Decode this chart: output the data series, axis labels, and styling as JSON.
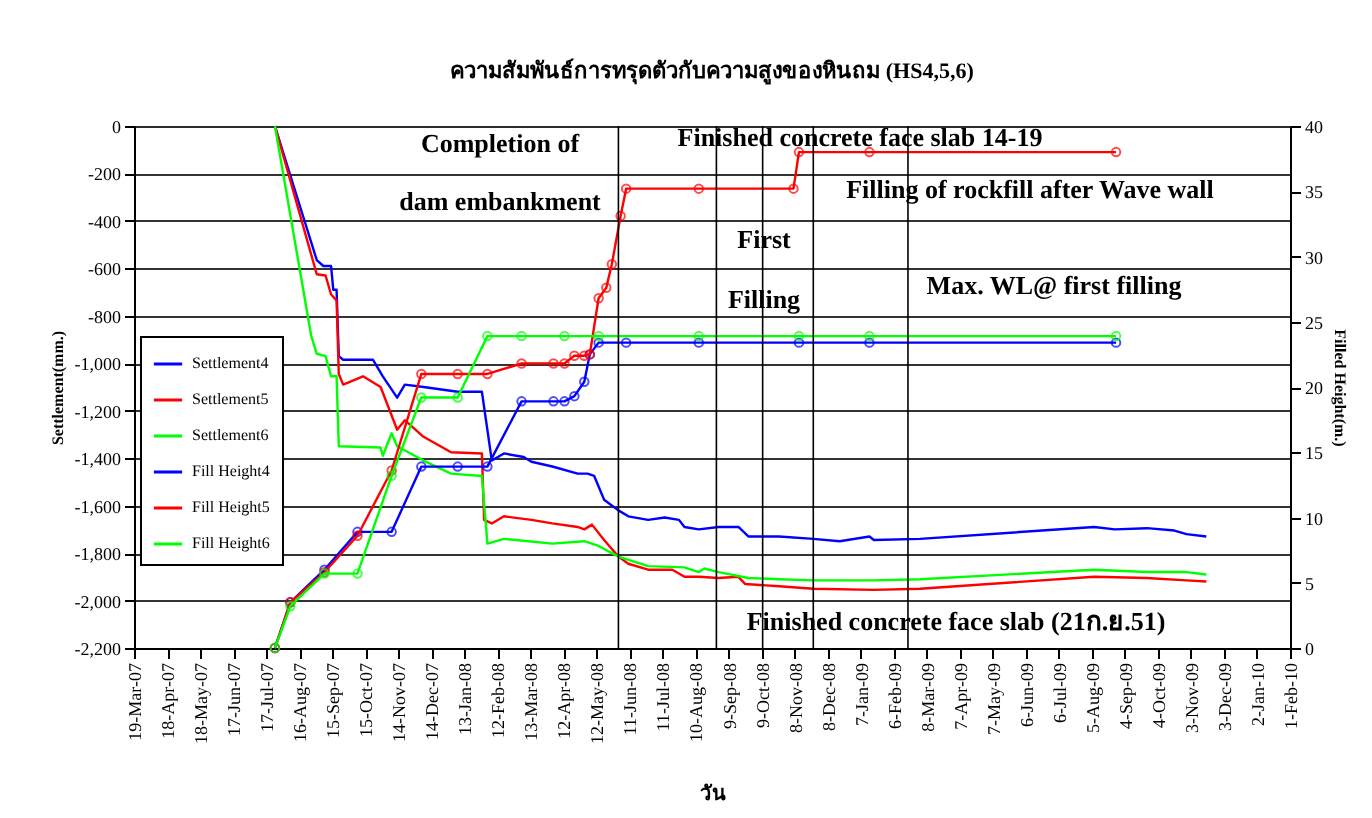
{
  "chart_data": {
    "type": "line",
    "title": "ความสัมพันธ์การทรุดตัวกับความสูงของหินถม (HS4,5,6)",
    "xlabel": "วัน",
    "ylabel": "Settlement(mm.)",
    "y2label": "Filled Height(m.)",
    "xlim": [
      "2007-03-19",
      "2010-02-01"
    ],
    "xticks": [
      {
        "value": "2007-03-19",
        "label": "19-Mar-07"
      },
      {
        "value": "2007-04-18",
        "label": "18-Apr-07"
      },
      {
        "value": "2007-05-18",
        "label": "18-May-07"
      },
      {
        "value": "2007-06-17",
        "label": "17-Jun-07"
      },
      {
        "value": "2007-07-17",
        "label": "17-Jul-07"
      },
      {
        "value": "2007-08-16",
        "label": "16-Aug-07"
      },
      {
        "value": "2007-09-15",
        "label": "15-Sep-07"
      },
      {
        "value": "2007-10-15",
        "label": "15-Oct-07"
      },
      {
        "value": "2007-11-14",
        "label": "14-Nov-07"
      },
      {
        "value": "2007-12-14",
        "label": "14-Dec-07"
      },
      {
        "value": "2008-01-13",
        "label": "13-Jan-08"
      },
      {
        "value": "2008-02-12",
        "label": "12-Feb-08"
      },
      {
        "value": "2008-03-13",
        "label": "13-Mar-08"
      },
      {
        "value": "2008-04-12",
        "label": "12-Apr-08"
      },
      {
        "value": "2008-05-12",
        "label": "12-May-08"
      },
      {
        "value": "2008-06-11",
        "label": "11-Jun-08"
      },
      {
        "value": "2008-07-11",
        "label": "11-Jul-08"
      },
      {
        "value": "2008-08-10",
        "label": "10-Aug-08"
      },
      {
        "value": "2008-09-09",
        "label": "9-Sep-08"
      },
      {
        "value": "2008-10-09",
        "label": "9-Oct-08"
      },
      {
        "value": "2008-11-08",
        "label": "8-Nov-08"
      },
      {
        "value": "2008-12-08",
        "label": "8-Dec-08"
      },
      {
        "value": "2009-01-07",
        "label": "7-Jan-09"
      },
      {
        "value": "2009-02-06",
        "label": "6-Feb-09"
      },
      {
        "value": "2009-03-08",
        "label": "8-Mar-09"
      },
      {
        "value": "2009-04-07",
        "label": "7-Apr-09"
      },
      {
        "value": "2009-05-07",
        "label": "7-May-09"
      },
      {
        "value": "2009-06-06",
        "label": "6-Jun-09"
      },
      {
        "value": "2009-07-06",
        "label": "6-Jul-09"
      },
      {
        "value": "2009-08-05",
        "label": "5-Aug-09"
      },
      {
        "value": "2009-09-04",
        "label": "4-Sep-09"
      },
      {
        "value": "2009-10-04",
        "label": "4-Oct-09"
      },
      {
        "value": "2009-11-03",
        "label": "3-Nov-09"
      },
      {
        "value": "2009-12-03",
        "label": "3-Dec-09"
      },
      {
        "value": "2010-01-02",
        "label": "2-Jan-10"
      },
      {
        "value": "2010-02-01",
        "label": "1-Feb-10"
      }
    ],
    "ylim": [
      -2200,
      0
    ],
    "yticks": [
      {
        "value": -2200,
        "label": "-2,200"
      },
      {
        "value": -2000,
        "label": "-2,000"
      },
      {
        "value": -1800,
        "label": "-1,800"
      },
      {
        "value": -1600,
        "label": "-1,600"
      },
      {
        "value": -1400,
        "label": "-1,400"
      },
      {
        "value": -1200,
        "label": "-1,200"
      },
      {
        "value": -1000,
        "label": "-1,000"
      },
      {
        "value": -800,
        "label": "-800"
      },
      {
        "value": -600,
        "label": "-600"
      },
      {
        "value": -400,
        "label": "-400"
      },
      {
        "value": -200,
        "label": "-200"
      },
      0
    ],
    "y2lim": [
      0,
      40
    ],
    "y2ticks": [
      0,
      5,
      10,
      15,
      20,
      25,
      30,
      35,
      40
    ],
    "grid": "y",
    "legend": "left",
    "series": [
      {
        "name": "Settlement4",
        "color": "#0000ff",
        "marker": "none",
        "x": [
          "2007-07-25",
          "2007-09-01",
          "2007-09-07",
          "2007-09-14",
          "2007-09-16",
          "2007-09-19",
          "2007-09-21",
          "2007-09-25",
          "2007-10-22",
          "2007-10-31",
          "2007-11-13",
          "2007-11-20",
          "2007-12-07",
          "2008-01-07",
          "2008-01-29",
          "2008-02-07",
          "2008-02-18",
          "2008-03-07",
          "2008-03-14",
          "2008-04-02",
          "2008-04-25",
          "2008-05-04",
          "2008-05-10",
          "2008-05-19",
          "2008-06-01",
          "2008-06-10",
          "2008-06-28",
          "2008-07-13",
          "2008-07-26",
          "2008-07-31",
          "2008-08-13",
          "2008-08-31",
          "2008-09-18",
          "2008-09-27",
          "2008-10-25",
          "2008-11-25",
          "2008-12-19",
          "2009-01-15",
          "2009-01-19",
          "2009-03-02",
          "2009-08-07",
          "2009-08-26",
          "2009-09-24",
          "2009-10-19",
          "2009-10-30",
          "2009-11-17"
        ],
        "values": [
          0,
          -565,
          -590,
          -590,
          -690,
          -690,
          -970,
          -985,
          -985,
          -1055,
          -1145,
          -1090,
          -1100,
          -1120,
          -1120,
          -1410,
          -1380,
          -1395,
          -1415,
          -1435,
          -1465,
          -1465,
          -1475,
          -1575,
          -1620,
          -1645,
          -1660,
          -1650,
          -1660,
          -1690,
          -1700,
          -1690,
          -1690,
          -1730,
          -1730,
          -1740,
          -1750,
          -1730,
          -1745,
          -1740,
          -1690,
          -1700,
          -1695,
          -1705,
          -1720,
          -1730
        ]
      },
      {
        "name": "Settlement5",
        "color": "#ff0000",
        "marker": "none",
        "x": [
          "2007-07-25",
          "2007-09-01",
          "2007-09-09",
          "2007-09-14",
          "2007-09-19",
          "2007-09-21",
          "2007-09-25",
          "2007-10-13",
          "2007-10-29",
          "2007-11-13",
          "2007-11-20",
          "2007-12-07",
          "2008-01-01",
          "2008-01-29",
          "2008-01-31",
          "2008-02-07",
          "2008-02-18",
          "2008-03-14",
          "2008-04-02",
          "2008-04-25",
          "2008-05-01",
          "2008-05-08",
          "2008-05-19",
          "2008-06-01",
          "2008-06-10",
          "2008-06-28",
          "2008-07-20",
          "2008-07-31",
          "2008-08-13",
          "2008-08-31",
          "2008-09-18",
          "2008-09-24",
          "2008-10-25",
          "2008-11-25",
          "2009-01-19",
          "2009-03-02",
          "2009-08-07",
          "2009-09-24",
          "2009-10-30",
          "2009-11-17"
        ],
        "values": [
          0,
          -625,
          -630,
          -710,
          -735,
          -1045,
          -1090,
          -1055,
          -1100,
          -1280,
          -1240,
          -1310,
          -1375,
          -1380,
          -1660,
          -1675,
          -1645,
          -1660,
          -1675,
          -1690,
          -1700,
          -1680,
          -1745,
          -1815,
          -1845,
          -1870,
          -1870,
          -1900,
          -1900,
          -1905,
          -1900,
          -1930,
          -1940,
          -1950,
          -1955,
          -1950,
          -1900,
          -1905,
          -1915,
          -1920
        ]
      },
      {
        "name": "Settlement6",
        "color": "#00ff00",
        "marker": "none",
        "x": [
          "2007-07-25",
          "2007-08-27",
          "2007-09-01",
          "2007-09-09",
          "2007-09-14",
          "2007-09-19",
          "2007-09-21",
          "2007-10-29",
          "2007-10-31",
          "2007-11-08",
          "2007-11-13",
          "2007-12-07",
          "2008-01-01",
          "2008-01-29",
          "2008-02-03",
          "2008-02-18",
          "2008-04-02",
          "2008-05-01",
          "2008-05-14",
          "2008-06-01",
          "2008-06-28",
          "2008-07-31",
          "2008-08-13",
          "2008-08-18",
          "2008-08-31",
          "2008-09-27",
          "2008-10-25",
          "2008-11-25",
          "2009-01-19",
          "2009-03-02",
          "2009-08-07",
          "2009-09-24",
          "2009-10-30",
          "2009-11-17"
        ],
        "values": [
          0,
          -885,
          -960,
          -970,
          -1055,
          -1055,
          -1350,
          -1355,
          -1390,
          -1295,
          -1350,
          -1410,
          -1465,
          -1475,
          -1760,
          -1740,
          -1760,
          -1750,
          -1770,
          -1815,
          -1855,
          -1860,
          -1880,
          -1865,
          -1880,
          -1905,
          -1910,
          -1915,
          -1915,
          -1910,
          -1870,
          -1880,
          -1880,
          -1890
        ]
      },
      {
        "name": "Fill Height4",
        "color": "#0000ff",
        "marker": "circle",
        "axis": "y2",
        "x": [
          "2007-07-25",
          "2007-08-08",
          "2007-09-08",
          "2007-10-08",
          "2007-11-08",
          "2007-12-05",
          "2008-01-07",
          "2008-02-03",
          "2008-03-05",
          "2008-04-03",
          "2008-04-13",
          "2008-04-22",
          "2008-05-01",
          "2008-05-06",
          "2008-05-14",
          "2008-06-08",
          "2008-08-13",
          "2008-11-12",
          "2009-01-15",
          "2009-08-27"
        ],
        "values": [
          0,
          3.5,
          6.0,
          8.9,
          8.9,
          13.9,
          13.9,
          13.9,
          18.9,
          18.9,
          18.9,
          19.3,
          20.4,
          22.5,
          23.4,
          23.4,
          23.4,
          23.4,
          23.4,
          23.4
        ]
      },
      {
        "name": "Fill Height5",
        "color": "#ff0000",
        "marker": "circle",
        "axis": "y2",
        "x": [
          "2007-07-25",
          "2007-08-08",
          "2007-09-08",
          "2007-10-08",
          "2007-11-08",
          "2007-12-05",
          "2008-01-07",
          "2008-02-03",
          "2008-03-05",
          "2008-04-03",
          "2008-04-13",
          "2008-04-22",
          "2008-05-01",
          "2008-05-06",
          "2008-05-14",
          "2008-05-21",
          "2008-05-26",
          "2008-06-03",
          "2008-06-08",
          "2008-08-13",
          "2008-11-07",
          "2008-11-12",
          "2009-01-15",
          "2009-08-27"
        ],
        "values": [
          0,
          3.5,
          5.8,
          8.6,
          13.6,
          21.0,
          21.0,
          21.0,
          21.8,
          21.8,
          21.8,
          22.4,
          22.4,
          22.5,
          26.8,
          27.6,
          29.4,
          33.1,
          35.2,
          35.2,
          35.2,
          38.0,
          38.0,
          38.0
        ]
      },
      {
        "name": "Fill Height6",
        "color": "#00ff00",
        "marker": "circle",
        "axis": "y2",
        "x": [
          "2007-07-25",
          "2007-08-08",
          "2007-09-08",
          "2007-10-08",
          "2007-11-08",
          "2007-12-05",
          "2008-01-07",
          "2008-02-03",
          "2008-03-05",
          "2008-04-13",
          "2008-05-14",
          "2008-08-13",
          "2008-11-12",
          "2009-01-15",
          "2009-08-27"
        ],
        "values": [
          0,
          3.2,
          5.7,
          5.7,
          13.2,
          19.2,
          19.2,
          23.9,
          23.9,
          23.9,
          23.9,
          23.9,
          23.9,
          23.9,
          23.9
        ]
      }
    ],
    "ref_lines": [
      {
        "axis": "x",
        "value": "2008-06-01",
        "color": "#000000"
      },
      {
        "axis": "x",
        "value": "2008-08-29",
        "color": "#000000"
      },
      {
        "axis": "x",
        "value": "2008-10-10",
        "color": "#000000"
      },
      {
        "axis": "x",
        "value": "2008-11-25",
        "color": "#000000"
      },
      {
        "axis": "x",
        "value": "2009-02-19",
        "color": "#000000"
      }
    ],
    "annotations": [
      "Completion of",
      "dam embankment",
      "Finished concrete face slab 14-19",
      "Filling of rockfill  after Wave wall",
      "First",
      "Filling",
      "Max. WL@ first filling",
      "Finished concrete face slab (21ก.ย.51)"
    ]
  }
}
